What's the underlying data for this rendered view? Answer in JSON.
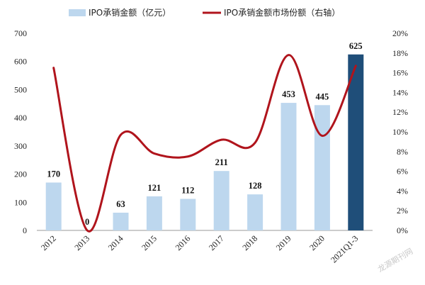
{
  "chart_data": {
    "type": "bar",
    "categories": [
      "2012",
      "2013",
      "2014",
      "2015",
      "2016",
      "2017",
      "2018",
      "2019",
      "2020",
      "2021Q1-3"
    ],
    "series": [
      {
        "name": "IPO承销金额（亿元）",
        "type": "bar",
        "axis": "left",
        "values": [
          170,
          0,
          63,
          121,
          112,
          211,
          128,
          453,
          445,
          625
        ],
        "labels": [
          "170",
          "0",
          "63",
          "121",
          "112",
          "211",
          "128",
          "453",
          "445",
          "625"
        ],
        "color": "#bdd7ee",
        "highlight_color": "#1f4e79",
        "highlight_index": 9
      },
      {
        "name": "IPO承销金额市场份额（右轴）",
        "type": "line",
        "axis": "right",
        "values": [
          16.5,
          0,
          9.7,
          7.8,
          7.5,
          9.2,
          8.9,
          17.8,
          9.6,
          16.7
        ],
        "color": "#b0141c"
      }
    ],
    "ylim": [
      0,
      700
    ],
    "yticks": [
      "0",
      "100",
      "200",
      "300",
      "400",
      "500",
      "600",
      "700"
    ],
    "y2lim": [
      0,
      20
    ],
    "y2ticks": [
      "0%",
      "2%",
      "4%",
      "6%",
      "8%",
      "10%",
      "12%",
      "14%",
      "16%",
      "18%",
      "20%"
    ],
    "legend_position": "top",
    "grid": false
  },
  "watermark": "龙源期刊网"
}
